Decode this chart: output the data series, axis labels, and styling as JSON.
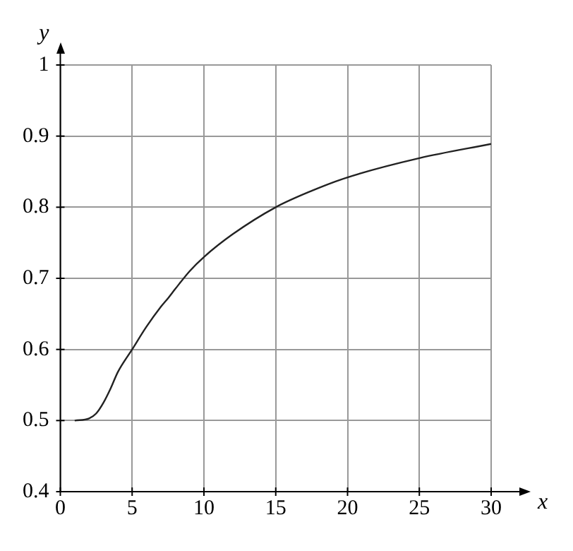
{
  "chart_data": {
    "type": "line",
    "xlabel": "x",
    "ylabel": "y",
    "x": [
      1,
      2,
      2.5,
      3,
      3.5,
      4,
      5,
      6,
      7,
      7.5,
      8,
      9,
      10,
      12,
      15,
      17.5,
      20,
      25,
      30
    ],
    "series": [
      {
        "color": "#222222",
        "values": [
          0.5,
          0.503,
          0.51,
          0.525,
          0.545,
          0.568,
          0.6,
          0.632,
          0.66,
          0.672,
          0.685,
          0.71,
          0.73,
          0.762,
          0.8,
          0.823,
          0.842,
          0.869,
          0.889
        ]
      }
    ],
    "xlim": [
      0,
      30
    ],
    "xticks": [
      0,
      5,
      10,
      15,
      20,
      25,
      30
    ],
    "ylim": [
      0.4,
      1
    ],
    "yticks": [
      0.4,
      0.5,
      0.6,
      0.7,
      0.8,
      0.9,
      1
    ],
    "grid": true,
    "legend": false,
    "marker": "none",
    "line_style": "solid"
  }
}
